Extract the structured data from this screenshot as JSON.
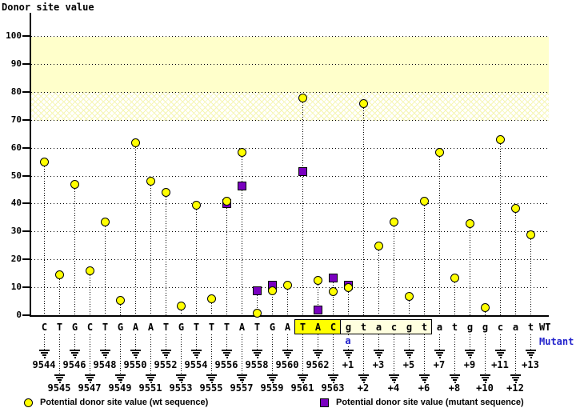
{
  "title": "Donor site value",
  "colors": {
    "wt_marker": "#ffff00",
    "mutant_marker": "#7a00c0",
    "band_solid": "#ffffcb",
    "highlight_yellow": "#ffff00",
    "highlight_cream": "#ffffdf",
    "mutant_text": "#2222cc"
  },
  "legend": {
    "wt": "Potential donor site value (wt sequence)",
    "mutant": "Potential donor site value (mutant sequence)"
  },
  "chart_data": {
    "type": "scatter",
    "title": "Donor site value",
    "ylabel": "Donor site value",
    "ylim": [
      0,
      100
    ],
    "y_ticks": [
      0,
      10,
      20,
      30,
      40,
      50,
      60,
      70,
      80,
      90,
      100
    ],
    "grid": "horizontal-dotted",
    "legend_position": "bottom",
    "bands": [
      {
        "from": 80,
        "to": 100,
        "style": "solid"
      },
      {
        "from": 70,
        "to": 80,
        "style": "crosshatch"
      }
    ],
    "series": [
      {
        "name": "Potential donor site value (wt sequence)",
        "marker": "circle",
        "color": "#ffff00"
      },
      {
        "name": "Potential donor site value (mutant sequence)",
        "marker": "square",
        "color": "#7a00c0"
      }
    ],
    "sequence_labels": {
      "wt": "WT",
      "mutant": "Mutant"
    },
    "mutation": {
      "position": "+1",
      "wt_base": "g",
      "mutant_base": "a"
    },
    "positions": [
      {
        "base": "C",
        "label": "9544",
        "wt": 55
      },
      {
        "base": "T",
        "label": "9545",
        "wt": 14.5
      },
      {
        "base": "G",
        "label": "9546",
        "wt": 47
      },
      {
        "base": "C",
        "label": "9547",
        "wt": 16
      },
      {
        "base": "T",
        "label": "9548",
        "wt": 33.5
      },
      {
        "base": "G",
        "label": "9549",
        "wt": 5.5
      },
      {
        "base": "A",
        "label": "9550",
        "wt": 62
      },
      {
        "base": "A",
        "label": "9551",
        "wt": 48
      },
      {
        "base": "T",
        "label": "9552",
        "wt": 44
      },
      {
        "base": "G",
        "label": "9553",
        "wt": 3.5
      },
      {
        "base": "T",
        "label": "9554",
        "wt": 39.5
      },
      {
        "base": "T",
        "label": "9555",
        "wt": 6
      },
      {
        "base": "T",
        "label": "9556",
        "wt": 41,
        "mut": 40
      },
      {
        "base": "A",
        "label": "9557",
        "wt": 58.5,
        "mut": 46.5
      },
      {
        "base": "T",
        "label": "9558",
        "wt": 1,
        "mut": 9
      },
      {
        "base": "G",
        "label": "9559",
        "wt": 9,
        "mut": 11
      },
      {
        "base": "A",
        "label": "9560",
        "wt": 11
      },
      {
        "base": "T",
        "label": "9561",
        "wt": 78,
        "mut": 51.5,
        "box": "yellow"
      },
      {
        "base": "A",
        "label": "9562",
        "wt": 12.5,
        "mut": 2,
        "box": "yellow"
      },
      {
        "base": "C",
        "label": "9563",
        "wt": 8.5,
        "mut": 13.5,
        "box": "yellow"
      },
      {
        "base": "g",
        "label": "+1",
        "wt": 10,
        "mut": 11,
        "box": "cream",
        "mutant_base": "a"
      },
      {
        "base": "t",
        "label": "+2",
        "wt": 76,
        "box": "cream"
      },
      {
        "base": "a",
        "label": "+3",
        "wt": 25,
        "box": "cream"
      },
      {
        "base": "c",
        "label": "+4",
        "wt": 33.5,
        "box": "cream"
      },
      {
        "base": "g",
        "label": "+5",
        "wt": 7,
        "box": "cream"
      },
      {
        "base": "t",
        "label": "+6",
        "wt": 41,
        "box": "cream"
      },
      {
        "base": "a",
        "label": "+7",
        "wt": 58.5
      },
      {
        "base": "t",
        "label": "+8",
        "wt": 13.5
      },
      {
        "base": "g",
        "label": "+9",
        "wt": 33
      },
      {
        "base": "g",
        "label": "+10",
        "wt": 3
      },
      {
        "base": "c",
        "label": "+11",
        "wt": 63
      },
      {
        "base": "a",
        "label": "+12",
        "wt": 38.5
      },
      {
        "base": "t",
        "label": "+13",
        "wt": 29
      }
    ]
  }
}
